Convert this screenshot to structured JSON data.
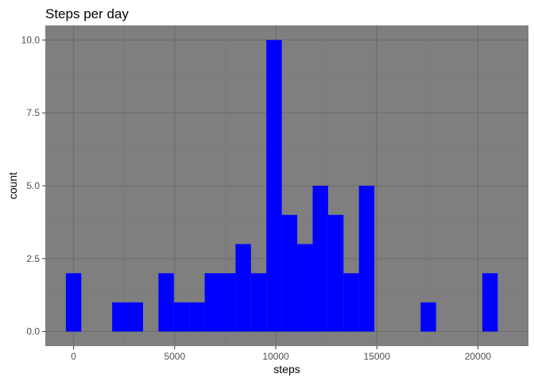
{
  "chart_data": {
    "type": "bar",
    "title": "Steps per day",
    "xlabel": "steps",
    "ylabel": "count",
    "xlim": [
      -1400,
      22500
    ],
    "ylim": [
      -0.5,
      10.5
    ],
    "x_ticks": [
      0,
      5000,
      10000,
      15000,
      20000
    ],
    "x_tick_labels": [
      "0",
      "5000",
      "10000",
      "15000",
      "20000"
    ],
    "y_ticks": [
      0,
      2.5,
      5,
      7.5,
      10
    ],
    "y_tick_labels": [
      "0.0",
      "2.5",
      "5.0",
      "7.5",
      "10.0"
    ],
    "bin_width": 763,
    "bins": [
      {
        "x": 0,
        "count": 2
      },
      {
        "x": 2289,
        "count": 1
      },
      {
        "x": 3052,
        "count": 1
      },
      {
        "x": 4578,
        "count": 2
      },
      {
        "x": 5341,
        "count": 1
      },
      {
        "x": 6104,
        "count": 1
      },
      {
        "x": 6867,
        "count": 2
      },
      {
        "x": 7630,
        "count": 2
      },
      {
        "x": 8393,
        "count": 3
      },
      {
        "x": 9156,
        "count": 2
      },
      {
        "x": 9919,
        "count": 10
      },
      {
        "x": 10682,
        "count": 4
      },
      {
        "x": 11445,
        "count": 3
      },
      {
        "x": 12208,
        "count": 5
      },
      {
        "x": 12971,
        "count": 4
      },
      {
        "x": 13734,
        "count": 2
      },
      {
        "x": 14497,
        "count": 5
      },
      {
        "x": 17549,
        "count": 1
      },
      {
        "x": 20601,
        "count": 2
      }
    ],
    "grid": true,
    "colors": {
      "bar": "#0000ff",
      "panel": "#7f7f7f",
      "grid_major": "#6b6b6b",
      "grid_minor": "#767676",
      "text": "#000000",
      "tick_text": "#4d4d4d"
    }
  }
}
